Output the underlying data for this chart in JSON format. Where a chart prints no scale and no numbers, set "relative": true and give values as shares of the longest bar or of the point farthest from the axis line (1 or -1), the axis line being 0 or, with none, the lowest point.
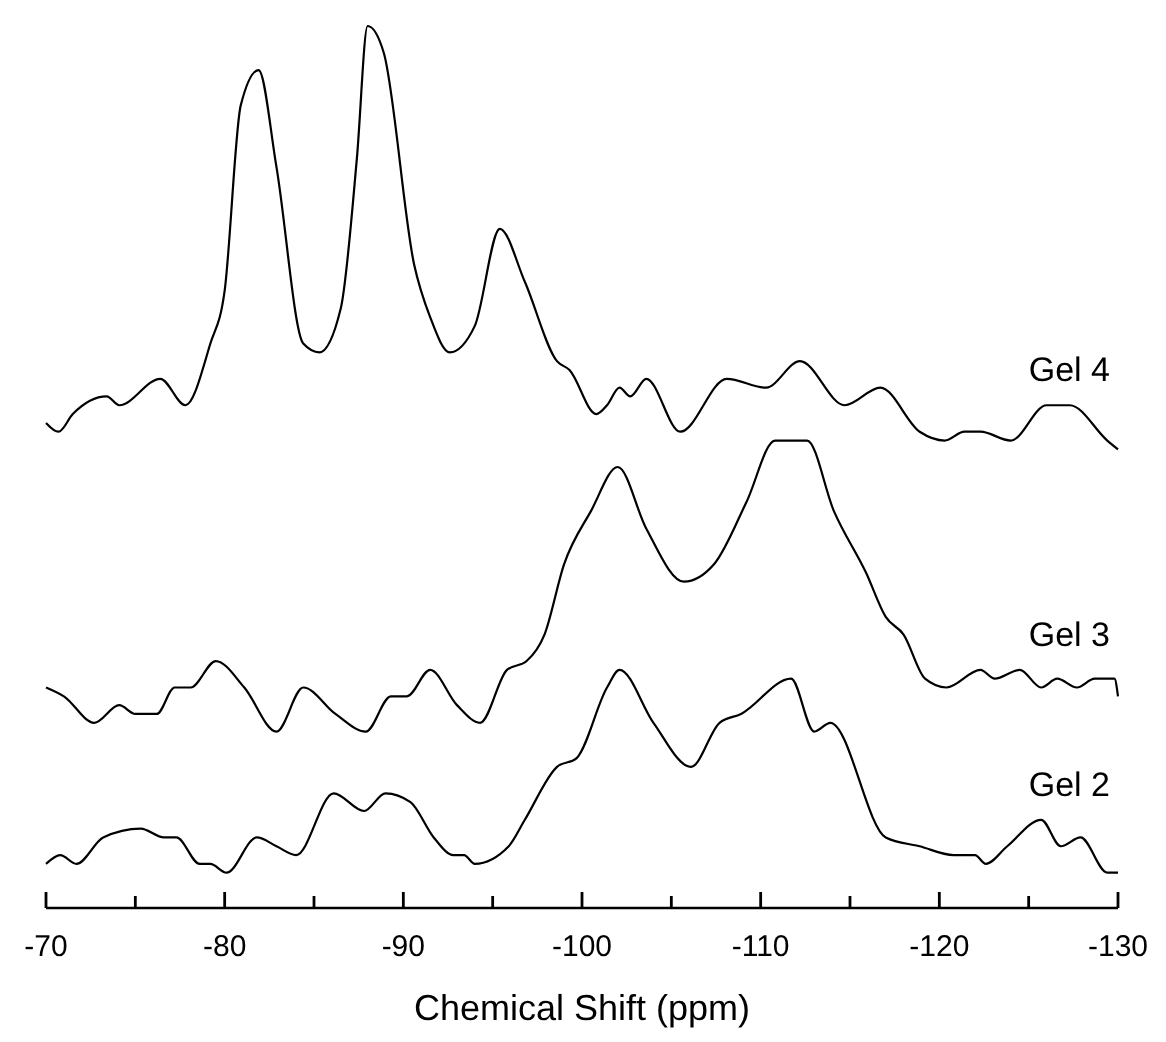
{
  "chart_data": {
    "type": "line",
    "relative": true,
    "xlabel": "Chemical Shift (ppm)",
    "xlim": [
      -70,
      -130
    ],
    "xticks": [
      -70,
      {
        "value": -75,
        "label": null
      },
      -80,
      {
        "value": -85,
        "label": null
      },
      -90,
      {
        "value": -95,
        "label": null
      },
      -100,
      {
        "value": -105,
        "label": null
      },
      -110,
      {
        "value": -115,
        "label": null
      },
      -120,
      {
        "value": -125,
        "label": null
      },
      -130
    ],
    "tick_labels": "x",
    "series": [
      {
        "name": "Gel 4",
        "color": "#000000",
        "x": [
          -70.0,
          -70.7,
          -71.5,
          -73.4,
          -74.1,
          -76.4,
          -77.8,
          -79.2,
          -80.0,
          -80.9,
          -81.9,
          -82.9,
          -84.4,
          -85.3,
          -86.5,
          -87.4,
          -88.0,
          -88.9,
          -90.6,
          -91.5,
          -92.6,
          -94.0,
          -95.4,
          -96.8,
          -98.6,
          -99.3,
          -100.8,
          -101.4,
          -102.1,
          -102.7,
          -103.6,
          -105.5,
          -108.1,
          -110.3,
          -112.2,
          -114.7,
          -116.7,
          -118.9,
          -120.3,
          -121.4,
          -122.3,
          -124.0,
          -126.0,
          -127.3,
          -129.4,
          -130.0
        ],
        "values": [
          0.55,
          0.54,
          0.56,
          0.58,
          0.57,
          0.6,
          0.57,
          0.64,
          0.7,
          0.91,
          0.95,
          0.84,
          0.64,
          0.63,
          0.68,
          0.85,
          1.0,
          0.97,
          0.73,
          0.67,
          0.63,
          0.66,
          0.77,
          0.71,
          0.62,
          0.61,
          0.56,
          0.57,
          0.59,
          0.58,
          0.6,
          0.54,
          0.6,
          0.59,
          0.62,
          0.57,
          0.59,
          0.54,
          0.53,
          0.54,
          0.54,
          0.53,
          0.57,
          0.57,
          0.53,
          0.52
        ]
      },
      {
        "name": "Gel 3",
        "color": "#000000",
        "x": [
          -70.0,
          -71.0,
          -72.7,
          -74.1,
          -75.0,
          -76.2,
          -77.2,
          -78.1,
          -79.5,
          -81.1,
          -82.9,
          -84.4,
          -86.2,
          -87.9,
          -89.3,
          -90.2,
          -91.5,
          -93.0,
          -94.3,
          -95.8,
          -96.9,
          -97.9,
          -99.0,
          -100.5,
          -102.0,
          -103.6,
          -105.7,
          -107.4,
          -109.2,
          -110.8,
          -112.6,
          -114.1,
          -115.9,
          -117.0,
          -118.0,
          -119.2,
          -120.4,
          -122.3,
          -123.1,
          -124.5,
          -125.7,
          -126.6,
          -127.7,
          -128.7,
          -129.8,
          -130.0
        ],
        "values": [
          0.25,
          0.24,
          0.21,
          0.23,
          0.22,
          0.22,
          0.25,
          0.25,
          0.28,
          0.25,
          0.2,
          0.25,
          0.22,
          0.2,
          0.24,
          0.24,
          0.27,
          0.23,
          0.21,
          0.27,
          0.28,
          0.31,
          0.39,
          0.45,
          0.5,
          0.43,
          0.37,
          0.39,
          0.46,
          0.53,
          0.53,
          0.45,
          0.38,
          0.33,
          0.31,
          0.26,
          0.25,
          0.27,
          0.26,
          0.27,
          0.25,
          0.26,
          0.25,
          0.26,
          0.26,
          0.24
        ]
      },
      {
        "name": "Gel 2",
        "color": "#000000",
        "x": [
          -70.0,
          -70.8,
          -71.7,
          -73.2,
          -75.3,
          -76.6,
          -77.3,
          -78.6,
          -79.2,
          -80.1,
          -81.8,
          -82.9,
          -84.0,
          -86.1,
          -87.8,
          -89.0,
          -90.4,
          -91.7,
          -92.8,
          -93.4,
          -94.0,
          -95.9,
          -96.8,
          -98.6,
          -99.7,
          -101.4,
          -102.1,
          -104.0,
          -106.1,
          -107.7,
          -108.9,
          -111.7,
          -113.0,
          -113.9,
          -117.0,
          -118.9,
          -120.8,
          -122.0,
          -122.6,
          -123.8,
          -125.7,
          -126.8,
          -127.9,
          -129.4,
          -130.0
        ],
        "values": [
          0.05,
          0.06,
          0.05,
          0.08,
          0.09,
          0.08,
          0.08,
          0.05,
          0.05,
          0.04,
          0.08,
          0.07,
          0.06,
          0.13,
          0.11,
          0.13,
          0.12,
          0.08,
          0.06,
          0.06,
          0.05,
          0.07,
          0.1,
          0.16,
          0.17,
          0.25,
          0.27,
          0.21,
          0.16,
          0.21,
          0.22,
          0.26,
          0.2,
          0.21,
          0.08,
          0.07,
          0.06,
          0.06,
          0.05,
          0.07,
          0.1,
          0.07,
          0.08,
          0.04,
          0.04
        ]
      }
    ]
  }
}
